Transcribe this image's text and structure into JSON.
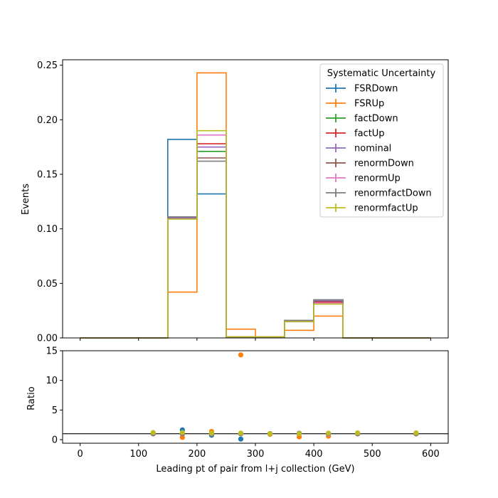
{
  "chart_data": [
    {
      "type": "line",
      "panel": "main",
      "drawstyle": "steps",
      "xlabel": "",
      "ylabel": "Events",
      "xlim": [
        -30,
        630
      ],
      "ylim": [
        0,
        0.255
      ],
      "xticks": [
        0,
        100,
        200,
        300,
        400,
        500,
        600
      ],
      "yticks": [
        0.0,
        0.05,
        0.1,
        0.15,
        0.2,
        0.25
      ],
      "ytick_labels": [
        "0.00",
        "0.05",
        "0.10",
        "0.15",
        "0.20",
        "0.25"
      ],
      "bin_edges": [
        0,
        50,
        100,
        150,
        200,
        250,
        300,
        350,
        400,
        450,
        500,
        550,
        600
      ],
      "legend": {
        "title": "Systematic Uncertainty",
        "placement": "top-right"
      },
      "series": [
        {
          "name": "FSRDown",
          "color": "#1f77b4",
          "values": [
            0,
            0,
            0,
            0.182,
            0.132,
            0.001,
            0.001,
            0.016,
            0.034,
            0,
            0,
            0
          ]
        },
        {
          "name": "FSRUp",
          "color": "#ff7f0e",
          "values": [
            0,
            0,
            0,
            0.042,
            0.243,
            0.008,
            0.001,
            0.007,
            0.02,
            0,
            0,
            0
          ]
        },
        {
          "name": "factDown",
          "color": "#2ca02c",
          "values": [
            0,
            0,
            0,
            0.109,
            0.171,
            0.001,
            0.001,
            0.015,
            0.033,
            0,
            0,
            0
          ]
        },
        {
          "name": "factUp",
          "color": "#d62728",
          "values": [
            0,
            0,
            0,
            0.11,
            0.178,
            0.001,
            0.001,
            0.015,
            0.033,
            0,
            0,
            0
          ]
        },
        {
          "name": "nominal",
          "color": "#9467bd",
          "values": [
            0,
            0,
            0,
            0.11,
            0.175,
            0.001,
            0.001,
            0.015,
            0.034,
            0,
            0,
            0
          ]
        },
        {
          "name": "renormDown",
          "color": "#8c564b",
          "values": [
            0,
            0,
            0,
            0.111,
            0.165,
            0.001,
            0.001,
            0.016,
            0.035,
            0,
            0,
            0
          ]
        },
        {
          "name": "renormUp",
          "color": "#e377c2",
          "values": [
            0,
            0,
            0,
            0.109,
            0.186,
            0.001,
            0.001,
            0.015,
            0.032,
            0,
            0,
            0
          ]
        },
        {
          "name": "renormfactDown",
          "color": "#7f7f7f",
          "values": [
            0,
            0,
            0,
            0.111,
            0.162,
            0.001,
            0.001,
            0.016,
            0.035,
            0,
            0,
            0
          ]
        },
        {
          "name": "renormfactUp",
          "color": "#bcbd22",
          "values": [
            0,
            0,
            0,
            0.109,
            0.19,
            0.001,
            0.001,
            0.015,
            0.031,
            0,
            0,
            0
          ]
        }
      ]
    },
    {
      "type": "scatter",
      "panel": "ratio",
      "xlabel": "Leading pt of pair from l+j collection (GeV)",
      "ylabel": "Ratio",
      "xlim": [
        -30,
        630
      ],
      "ylim": [
        -0.6,
        15
      ],
      "xticks": [
        0,
        100,
        200,
        300,
        400,
        500,
        600
      ],
      "yticks": [
        0,
        5,
        10,
        15
      ],
      "reference_line": 1,
      "series": [
        {
          "name": "FSRDown",
          "color": "#1f77b4",
          "x": [
            125,
            175,
            225,
            275,
            325,
            375,
            425,
            475,
            575
          ],
          "y": [
            1.0,
            1.65,
            0.75,
            0.1,
            1.0,
            1.05,
            1.0,
            1.0,
            1.0
          ]
        },
        {
          "name": "FSRUp",
          "color": "#ff7f0e",
          "x": [
            125,
            175,
            225,
            275,
            325,
            375,
            425,
            475,
            575
          ],
          "y": [
            1.0,
            0.38,
            1.39,
            14.3,
            0.9,
            0.47,
            0.59,
            1.0,
            1.0
          ]
        },
        {
          "name": "factDown",
          "color": "#2ca02c",
          "x": [
            125,
            175,
            225,
            275,
            325,
            375,
            425,
            475,
            575
          ],
          "y": [
            1.0,
            0.99,
            0.98,
            1.0,
            1.0,
            1.0,
            0.97,
            1.0,
            1.0
          ]
        },
        {
          "name": "factUp",
          "color": "#d62728",
          "x": [
            125,
            175,
            225,
            275,
            325,
            375,
            425,
            475,
            575
          ],
          "y": [
            1.0,
            1.0,
            1.02,
            1.0,
            1.0,
            1.0,
            0.97,
            1.0,
            1.0
          ]
        },
        {
          "name": "nominal",
          "color": "#9467bd",
          "x": [
            125,
            175,
            225,
            275,
            325,
            375,
            425,
            475,
            575
          ],
          "y": [
            1.0,
            1.0,
            1.0,
            1.0,
            1.0,
            1.0,
            1.0,
            1.0,
            1.0
          ]
        },
        {
          "name": "renormDown",
          "color": "#8c564b",
          "x": [
            125,
            175,
            225,
            275,
            325,
            375,
            425,
            475,
            575
          ],
          "y": [
            1.0,
            1.01,
            0.94,
            1.0,
            1.0,
            1.07,
            1.03,
            1.0,
            1.0
          ]
        },
        {
          "name": "renormUp",
          "color": "#e377c2",
          "x": [
            125,
            175,
            225,
            275,
            325,
            375,
            425,
            475,
            575
          ],
          "y": [
            1.0,
            0.99,
            1.06,
            1.0,
            1.0,
            1.0,
            0.94,
            1.0,
            1.0
          ]
        },
        {
          "name": "renormfactDown",
          "color": "#7f7f7f",
          "x": [
            125,
            175,
            225,
            275,
            325,
            375,
            425,
            475,
            575
          ],
          "y": [
            1.0,
            1.01,
            0.93,
            1.0,
            1.0,
            1.07,
            1.03,
            1.0,
            1.0
          ]
        },
        {
          "name": "renormfactUp",
          "color": "#bcbd22",
          "x": [
            125,
            175,
            225,
            275,
            325,
            375,
            425,
            475,
            575
          ],
          "y": [
            1.2,
            1.2,
            1.1,
            1.1,
            1.0,
            1.0,
            1.1,
            1.15,
            1.15
          ]
        }
      ]
    }
  ]
}
